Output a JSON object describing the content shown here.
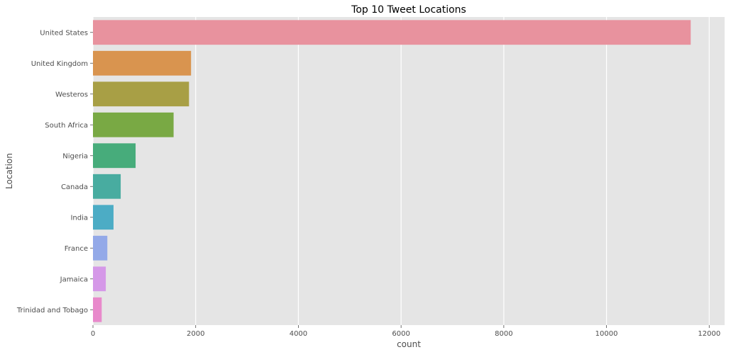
{
  "chart_data": {
    "type": "bar",
    "orientation": "horizontal",
    "title": "Top 10 Tweet Locations",
    "xlabel": "count",
    "ylabel": "Location",
    "categories": [
      "United States",
      "United Kingdom",
      "Westeros",
      "South Africa",
      "Nigeria",
      "Canada",
      "India",
      "France",
      "Jamaica",
      "Trinidad and Tobago"
    ],
    "values": [
      11640,
      1910,
      1870,
      1570,
      830,
      540,
      400,
      280,
      250,
      170
    ],
    "colors": [
      "#e8929e",
      "#d9944f",
      "#a89f45",
      "#79a944",
      "#47ac7b",
      "#48aca0",
      "#4cacc5",
      "#93a9e8",
      "#d598e8",
      "#e889cb"
    ],
    "xlim": [
      0,
      12300
    ],
    "xticks": [
      0,
      2000,
      4000,
      6000,
      8000,
      10000,
      12000
    ],
    "xtick_labels": [
      "0",
      "2000",
      "4000",
      "6000",
      "8000",
      "10000",
      "12000"
    ],
    "grid": true,
    "style": {
      "plot_background": "#e5e5e5",
      "grid_color": "#ffffff",
      "text_color": "#4d4d4d"
    }
  }
}
